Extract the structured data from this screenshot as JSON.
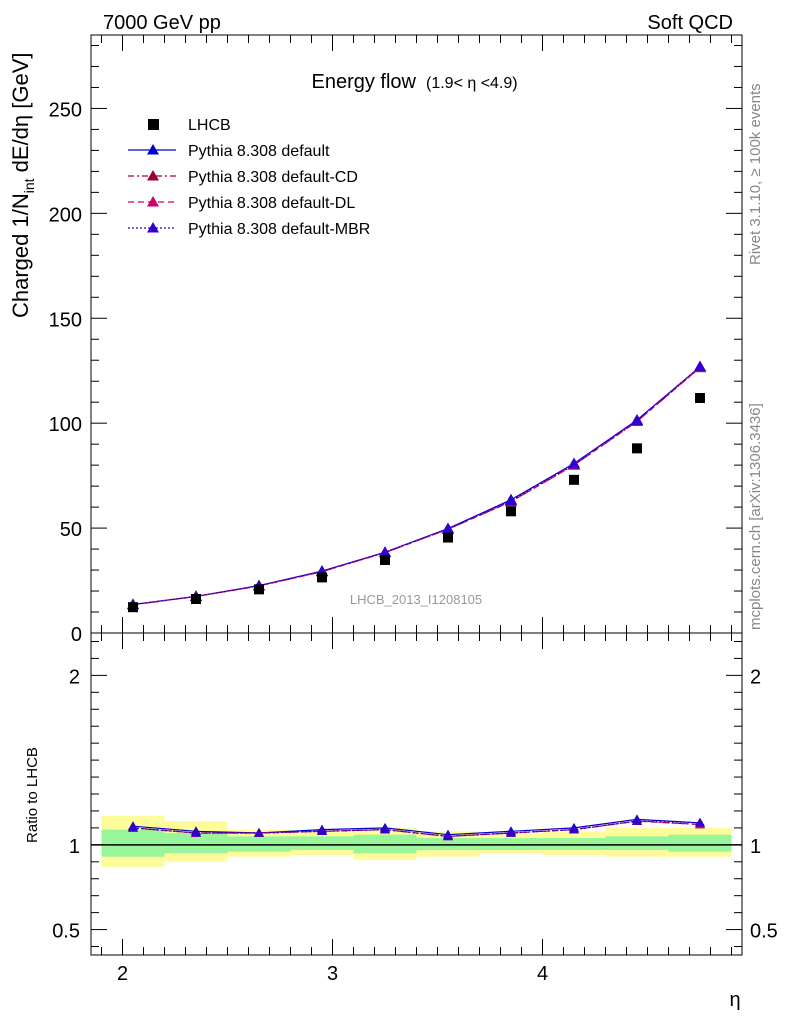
{
  "header": {
    "left": "7000 GeV pp",
    "right": "Soft QCD"
  },
  "side_labels": {
    "top": "Rivet 3.1.10, ≥ 100k events",
    "bottom": "mcplots.cern.ch [arXiv:1306.3436]"
  },
  "watermark": "LHCB_2013_I1208105",
  "chart_data": [
    {
      "type": "line",
      "title": "Energy flow",
      "title_suffix": "(1.9< η <4.9)",
      "ylabel": "Charged 1/N",
      "ylabel_sub": "int",
      "ylabel_rest": " dE/dη [GeV]",
      "xlim": [
        1.85,
        4.95
      ],
      "ylim": [
        0,
        285
      ],
      "yticks": [
        0,
        50,
        100,
        150,
        200,
        250
      ],
      "ytick_labels": [
        "0",
        "50",
        "100",
        "150",
        "200",
        "250"
      ],
      "x": [
        2.05,
        2.35,
        2.65,
        2.95,
        3.25,
        3.55,
        3.85,
        4.15,
        4.45,
        4.75
      ],
      "data": {
        "name": "LHCB",
        "values": [
          12.3,
          16.2,
          20.8,
          26.5,
          34.8,
          45.5,
          58.0,
          73.0,
          88.0,
          112.0
        ],
        "color": "#000000"
      },
      "series": [
        {
          "name": "Pythia 8.308 default",
          "values": [
            13.6,
            17.5,
            22.6,
            29.5,
            38.5,
            49.8,
            63.5,
            80.8,
            101.5,
            126.8
          ],
          "color": "#0000cc",
          "dash": ""
        },
        {
          "name": "Pythia 8.308 default-CD",
          "values": [
            13.5,
            17.4,
            22.4,
            29.2,
            38.3,
            49.4,
            62.6,
            80.0,
            100.8,
            126.5
          ],
          "color": "#990033",
          "dash": "6,3,2,3"
        },
        {
          "name": "Pythia 8.308 default-DL",
          "values": [
            13.5,
            17.4,
            22.4,
            29.2,
            38.3,
            49.4,
            62.6,
            80.0,
            100.8,
            126.5
          ],
          "color": "#cc0066",
          "dash": "6,4"
        },
        {
          "name": "Pythia 8.308 default-MBR",
          "values": [
            13.5,
            17.4,
            22.5,
            29.4,
            38.4,
            49.6,
            63.0,
            80.5,
            101.3,
            127.0
          ],
          "color": "#3300cc",
          "dash": "2,2"
        }
      ]
    },
    {
      "type": "line",
      "ylabel": "Ratio to LHCB",
      "xlabel": "η",
      "xlim": [
        1.85,
        4.95
      ],
      "ylim": [
        0.35,
        2.25
      ],
      "yticks": [
        0.5,
        1,
        2
      ],
      "ytick_labels": [
        "0.5",
        "1",
        "2"
      ],
      "xticks": [
        2,
        3,
        4
      ],
      "xtick_labels": [
        "2",
        "3",
        "4"
      ],
      "bins": [
        [
          1.9,
          2.2
        ],
        [
          2.2,
          2.5
        ],
        [
          2.5,
          2.8
        ],
        [
          2.8,
          3.1
        ],
        [
          3.1,
          3.4
        ],
        [
          3.4,
          3.7
        ],
        [
          3.7,
          4.0
        ],
        [
          4.0,
          4.3
        ],
        [
          4.3,
          4.6
        ],
        [
          4.6,
          4.9
        ]
      ],
      "band_green": [
        [
          0.93,
          1.09
        ],
        [
          0.95,
          1.07
        ],
        [
          0.96,
          1.05
        ],
        [
          0.97,
          1.05
        ],
        [
          0.95,
          1.06
        ],
        [
          0.97,
          1.04
        ],
        [
          0.97,
          1.04
        ],
        [
          0.97,
          1.04
        ],
        [
          0.97,
          1.05
        ],
        [
          0.96,
          1.06
        ]
      ],
      "band_yellow": [
        [
          0.87,
          1.17
        ],
        [
          0.9,
          1.14
        ],
        [
          0.93,
          1.09
        ],
        [
          0.94,
          1.08
        ],
        [
          0.91,
          1.1
        ],
        [
          0.93,
          1.08
        ],
        [
          0.95,
          1.07
        ],
        [
          0.94,
          1.08
        ],
        [
          0.93,
          1.1
        ],
        [
          0.93,
          1.1
        ]
      ],
      "band_colors": {
        "green": "#99f599",
        "yellow": "#fdfb9a"
      },
      "series": [
        {
          "name": "Pythia 8.308 default",
          "values": [
            1.11,
            1.08,
            1.07,
            1.09,
            1.1,
            1.06,
            1.08,
            1.1,
            1.15,
            1.13
          ]
        },
        {
          "name": "Pythia 8.308 default-CD",
          "values": [
            1.1,
            1.07,
            1.07,
            1.08,
            1.09,
            1.05,
            1.07,
            1.09,
            1.14,
            1.12
          ]
        },
        {
          "name": "Pythia 8.308 default-DL",
          "values": [
            1.1,
            1.07,
            1.07,
            1.08,
            1.09,
            1.05,
            1.07,
            1.09,
            1.14,
            1.12
          ]
        },
        {
          "name": "Pythia 8.308 default-MBR",
          "values": [
            1.1,
            1.07,
            1.07,
            1.08,
            1.09,
            1.05,
            1.07,
            1.09,
            1.14,
            1.13
          ]
        }
      ]
    }
  ]
}
